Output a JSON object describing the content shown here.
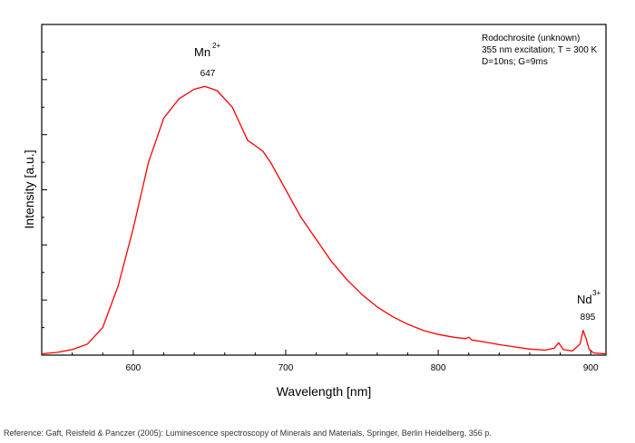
{
  "chart_data": {
    "type": "line",
    "xlabel": "Wavelength [nm]",
    "ylabel": "Intensity [a.u.]",
    "xlim": [
      540,
      910
    ],
    "ylim": [
      0,
      1.2
    ],
    "x_ticks": [
      "600",
      "700",
      "800",
      "900"
    ],
    "y_ticks_labeled": false,
    "grid": false,
    "legend": {
      "placement": "top-right",
      "lines": [
        "Rodochrosite (unknown)",
        "355 nm excitation; T = 300 K",
        "D=10ns; G=9ms"
      ]
    },
    "annotations": [
      {
        "ion": "Mn",
        "charge": "2+",
        "peak": "647",
        "x": 647
      },
      {
        "ion": "Nd",
        "charge": "3+",
        "peak": "895",
        "x": 895
      }
    ],
    "series": [
      {
        "color": "#ff0000",
        "x": [
          540,
          550,
          560,
          570,
          580,
          590,
          600,
          610,
          620,
          630,
          640,
          647,
          655,
          665,
          675,
          685,
          690,
          700,
          710,
          720,
          730,
          740,
          750,
          760,
          770,
          780,
          790,
          800,
          810,
          818,
          820,
          822,
          830,
          840,
          850,
          860,
          870,
          876,
          879,
          882,
          888,
          893,
          895,
          897,
          899,
          902,
          910
        ],
        "y": [
          0.005,
          0.01,
          0.02,
          0.04,
          0.1,
          0.25,
          0.46,
          0.7,
          0.86,
          0.93,
          0.965,
          0.975,
          0.96,
          0.9,
          0.78,
          0.74,
          0.7,
          0.6,
          0.5,
          0.42,
          0.34,
          0.275,
          0.22,
          0.175,
          0.14,
          0.112,
          0.09,
          0.075,
          0.065,
          0.06,
          0.065,
          0.055,
          0.048,
          0.038,
          0.03,
          0.022,
          0.018,
          0.025,
          0.045,
          0.02,
          0.015,
          0.04,
          0.09,
          0.06,
          0.02,
          0.008,
          0.005
        ]
      }
    ]
  },
  "reference": "Reference: Gaft, Reisfeld & Panczer (2005): Luminescence spectroscopy of Minerals and Materials, Springer, Berlin Heidelberg, 356 p."
}
